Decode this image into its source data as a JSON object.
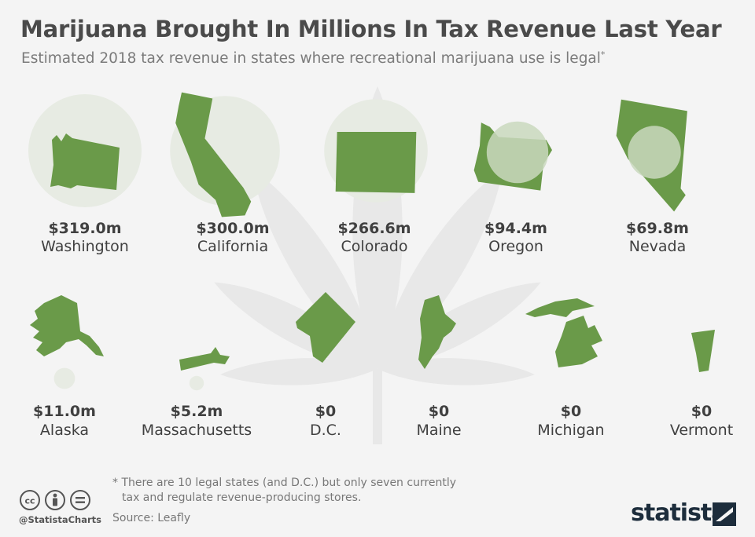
{
  "title": "Marijuana Brought In Millions In Tax Revenue Last Year",
  "subtitle": "Estimated 2018 tax revenue in states where recreational marijuana use is legal",
  "subtitle_marker": "*",
  "footnote": {
    "line1": "* There are 10 legal states (and D.C.) but only seven currently",
    "line2": "tax and regulate revenue-producing stores."
  },
  "source": "Source: Leafly",
  "handle": "@StatistaCharts",
  "logo_text": "statista",
  "icons": [
    "cc-icon",
    "by-icon",
    "nd-icon",
    "cannabis-leaf-icon",
    "statista-logo-icon"
  ],
  "colors": {
    "state_fill": "#6a9a49",
    "bubble_fill": "#e7ebe3",
    "bubble_overlay": "#c9d8bd",
    "leaf_watermark": "#e8e8e8",
    "text": "#404040",
    "background": "#f4f4f4"
  },
  "chart_data": {
    "type": "bubble",
    "title": "Marijuana Brought In Millions In Tax Revenue Last Year",
    "subtitle": "Estimated 2018 tax revenue in states where recreational marijuana use is legal",
    "unit": "$m",
    "categories": [
      "Washington",
      "California",
      "Colorado",
      "Oregon",
      "Nevada",
      "Alaska",
      "Massachusetts",
      "D.C.",
      "Maine",
      "Michigan",
      "Vermont"
    ],
    "values": [
      319.0,
      300.0,
      266.6,
      94.4,
      69.8,
      11.0,
      5.2,
      0,
      0,
      0,
      0
    ],
    "labels": [
      "$319.0m",
      "$300.0m",
      "$266.6m",
      "$94.4m",
      "$69.8m",
      "$11.0m",
      "$5.2m",
      "$0",
      "$0",
      "$0",
      "$0"
    ]
  }
}
